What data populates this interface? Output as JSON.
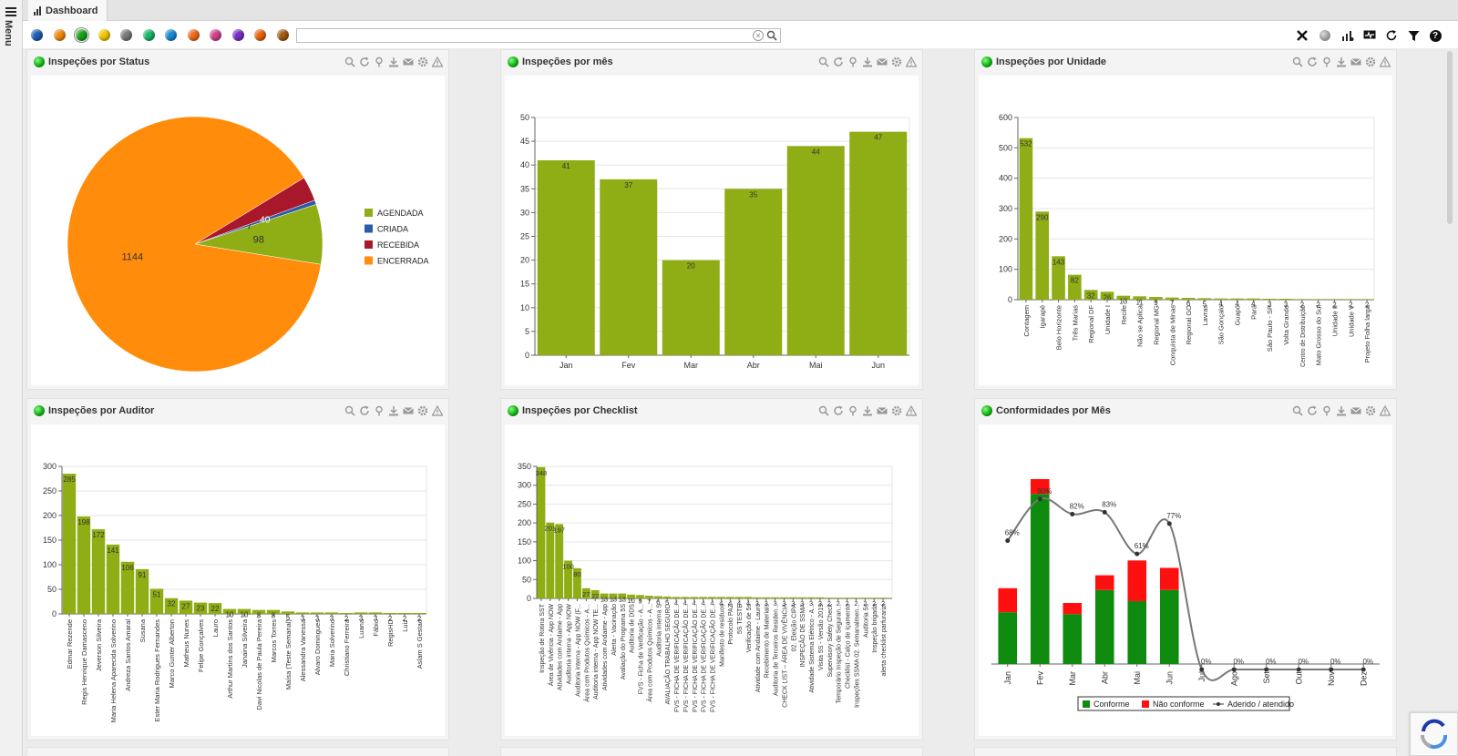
{
  "app": {
    "menu_label": "Menu",
    "tab_title": "Dashboard"
  },
  "toolbar": {
    "search": {
      "value": "",
      "placeholder": ""
    },
    "filter_colors": [
      "#1f5fb8",
      "#f08a12",
      "#1aa51a",
      "#f0c800",
      "#7a7a7a",
      "#1bb86a",
      "#1b8bd6",
      "#f06a1a",
      "#d6408e",
      "#7a2fc8",
      "#e8660e",
      "#a45a12"
    ],
    "selected_color_index": 2
  },
  "panels": {
    "status": {
      "title": "Inspeções por Status"
    },
    "month": {
      "title": "Inspeções por mês"
    },
    "unit": {
      "title": "Inspeções por Unidade"
    },
    "auditor": {
      "title": "Inspeções por Auditor"
    },
    "checklist": {
      "title": "Inspeções por Checklist"
    },
    "conformity": {
      "title": "Conformidades por Mês"
    }
  },
  "chart_data": [
    {
      "id": "status",
      "type": "pie",
      "labels": [
        "AGENDADA",
        "CRIADA",
        "RECEBIDA",
        "ENCERRADA"
      ],
      "values": [
        98,
        7,
        40,
        1144
      ],
      "slice_labels": [
        "98",
        "7",
        "40",
        "1144"
      ],
      "colors": [
        "#8fad15",
        "#2a5ca8",
        "#a8182a",
        "#ff8c0a"
      ],
      "legend_placement": "right"
    },
    {
      "id": "month",
      "type": "bar",
      "categories": [
        "Jan",
        "Fev",
        "Mar",
        "Abr",
        "Mai",
        "Jun"
      ],
      "values": [
        41,
        37,
        20,
        35,
        44,
        47
      ],
      "ylim": [
        0,
        50
      ],
      "yticks": [
        0,
        5,
        10,
        15,
        20,
        25,
        30,
        35,
        40,
        45,
        50
      ],
      "color": "#8fad15"
    },
    {
      "id": "unit",
      "type": "bar",
      "categories": [
        "Contagem",
        "Igarapé",
        "Belo Horizonte",
        "Três Marias",
        "Regional DF",
        "Unidade I",
        "Recife",
        "Não se Aplica",
        "Regional MG",
        "Conquista de Minas",
        "Regional GO",
        "Lavras",
        "São Gonçalo",
        "Guapó",
        "Pará",
        "São Paulo - SP",
        "Volta Grande",
        "Centro de Distribuição",
        "Mato Grosso do Sul",
        "Unidade II",
        "Unidade V",
        "Projeto Folha larga"
      ],
      "values": [
        532,
        290,
        143,
        82,
        32,
        26,
        13,
        11,
        9,
        7,
        6,
        5,
        4,
        4,
        4,
        3,
        3,
        2,
        2,
        2,
        2,
        2
      ],
      "ylim": [
        0,
        600
      ],
      "yticks": [
        0,
        100,
        200,
        300,
        400,
        500,
        600
      ],
      "color": "#8fad15"
    },
    {
      "id": "auditor",
      "type": "bar",
      "categories": [
        "Edmar Rezende",
        "Regis Henrique Damasceno",
        "Jeverson Silveira",
        "Maria Helena Aparecida Solverino",
        "Andreza Santos Amaral",
        "Susana",
        "Ester Maria Rodrigues Fernandes",
        "Marco Gunter Alberton",
        "Matheus Nunes",
        "Felipe Gonçalves",
        "Lauro",
        "Arthur Martins dos Santos",
        "Janaina Silveira",
        "Davi Nicolas de Paula Pereira",
        "Marcos Torres",
        "Maísa (Teste Semanal)",
        "Alessandra Vanessa",
        "Alvaro Domingues",
        "Maria Solverino",
        "Christiano Ferreira",
        "Luana",
        "Fábio",
        "RegisHD",
        "Luiz",
        "Aslam S Gestao"
      ],
      "values": [
        285,
        198,
        172,
        141,
        106,
        91,
        51,
        32,
        27,
        23,
        22,
        10,
        10,
        8,
        8,
        5,
        3,
        3,
        3,
        2,
        3,
        3,
        2,
        2,
        2
      ],
      "ylim": [
        0,
        300
      ],
      "yticks": [
        0,
        50,
        100,
        150,
        200,
        250,
        300
      ],
      "color": "#8fad15"
    },
    {
      "id": "checklist",
      "type": "bar",
      "categories": [
        "Inspeção de Rotina SST",
        "Área de Vivência - App NOW",
        "Atividades com Andaime - App",
        "Auditoria interna - App NOW",
        "Auditoria interna - App NOW (F...",
        "Área com Produtos Químicos - A...",
        "Auditoria interna - App NOW TE...",
        "Atividades com Andaime - App",
        "Alerta - Vacinação",
        "Avaliação do Programa 5S",
        "Auditoria de DDS",
        "FVS - Ficha de Verificação - A...",
        "Área com Produtos Químicos - A...",
        "Auditoria interna S",
        "AVALIAÇÃO TRABALHO SEGURO",
        "FVS - FICHA DE VERIFICAÇÃO DE...",
        "FVS - FICHA DE VERIFICAÇÃO DE...",
        "FVS - FICHA DE VERIFICAÇÃO DE...",
        "FVS - FICHA DE VERIFICAÇÃO DE...",
        "FVS - FICHA DE VERIFICAÇÃO DE...",
        "Manifesto de resíduos",
        "Protocolo PAZ",
        "5S TESTE",
        "Verificação de 5s",
        "Atividade com Andaime - Lauro",
        "Recebimento de Materiais",
        "Auditoria de Terceiros Residen...",
        "CHECK LIST – ÁREA DE VIVÊNCIA",
        "02. Eleição CIPA",
        "INSPEÇÃO DE SSMA",
        "Atividade Sistema Elétrico - A...",
        "Visita 5S - Versão 2019",
        "Supervisory Safety Check",
        "Temporário Inspeção de Seguran...",
        "Checklist - Calço de Içamento",
        "Inspeções SSMA 02. Semanalmen...",
        "Auditoria 5s",
        "Inspeção brigada",
        "alerta checklist parfurarizi"
      ],
      "values": [
        348,
        201,
        197,
        100,
        80,
        27,
        22,
        13,
        13,
        13,
        10,
        9,
        7,
        6,
        5,
        4,
        4,
        4,
        4,
        4,
        4,
        4,
        4,
        4,
        3,
        3,
        3,
        3,
        3,
        3,
        3,
        3,
        2,
        2,
        2,
        2,
        2,
        2,
        2
      ],
      "ylim": [
        0,
        350
      ],
      "yticks": [
        0,
        50,
        100,
        150,
        200,
        250,
        300,
        350
      ],
      "color": "#8fad15"
    },
    {
      "id": "conformity",
      "type": "bar",
      "stacked": true,
      "categories": [
        "Jan",
        "Fev",
        "Mar",
        "Abr",
        "Mai",
        "Jun",
        "Jul",
        "Ago",
        "Set",
        "Out",
        "Nov",
        "Dez"
      ],
      "series": [
        {
          "name": "Conforme",
          "color": "#0e8a0e",
          "values": [
            28,
            92,
            27,
            40,
            34,
            40,
            0,
            0,
            0,
            0,
            0,
            0
          ]
        },
        {
          "name": "Não conforme",
          "color": "#ff1010",
          "values": [
            13,
            8,
            6,
            8,
            22,
            12,
            0,
            0,
            0,
            0,
            0,
            0
          ]
        }
      ],
      "line": {
        "name": "Aderido / atendido",
        "color": "#777777",
        "values": [
          68,
          90,
          82,
          83,
          61,
          77,
          0,
          0,
          0,
          0,
          0,
          0
        ],
        "labels": [
          "68%",
          "90%",
          "82%",
          "83%",
          "61%",
          "77%",
          "0%",
          "0%",
          "0%",
          "0%",
          "0%",
          "0%"
        ]
      },
      "bar_max": 100,
      "line_max": 100,
      "legend_placement": "bottom"
    }
  ]
}
